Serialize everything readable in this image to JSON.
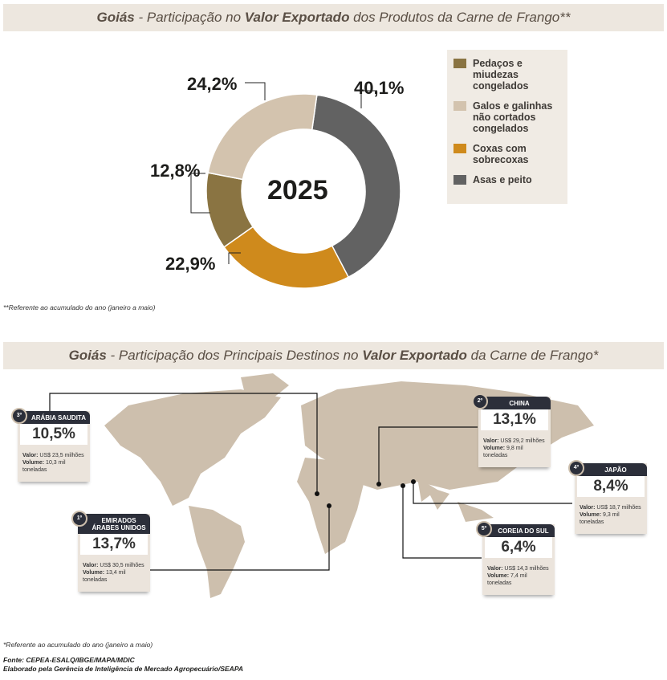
{
  "banner1": {
    "place": "Goiás",
    "text1": " - Participação no ",
    "bold": "Valor Exportado",
    "text2": " dos Produtos da Carne de Frango**"
  },
  "chart_data": {
    "type": "pie",
    "title": "Goiás - Participação no Valor Exportado dos Produtos da Carne de Frango**",
    "center_label": "2025",
    "categories": [
      "Asas e peito",
      "Coxas com sobrecoxas",
      "Pedaços e miudezas congelados",
      "Galos e galinhas não cortados congelados"
    ],
    "values": [
      40.1,
      22.9,
      12.8,
      24.2
    ],
    "labels": [
      "40,1%",
      "22,9%",
      "12,8%",
      "24,2%"
    ],
    "colors": [
      "#626262",
      "#cf8a1c",
      "#8a7442",
      "#d3c3ae"
    ],
    "legend": [
      {
        "label": "Pedaços e miudezas congelados",
        "color": "#8a7442"
      },
      {
        "label": "Galos e galinhas não cortados congelados",
        "color": "#d3c3ae"
      },
      {
        "label": "Coxas com sobrecoxas",
        "color": "#cf8a1c"
      },
      {
        "label": "Asas e peito",
        "color": "#626262"
      }
    ],
    "legend_placement": "right"
  },
  "note1": "**Referente ao acumulado do ano (janeiro a maio)",
  "banner2": {
    "place": "Goiás",
    "text1": " - Participação dos Principais Destinos no ",
    "bold": "Valor Exportado",
    "text2": " da Carne de Frango*"
  },
  "destinations": [
    {
      "rank": "3º",
      "name": "ARÁBIA SAUDITA",
      "pct": "10,5%",
      "valor_label": "Valor:",
      "valor": " US$ 23,5 milhões",
      "volume_label": "Volume:",
      "volume": " 10,3 mil toneladas"
    },
    {
      "rank": "1º",
      "name": "EMIRADOS ÁRABES UNIDOS",
      "pct": "13,7%",
      "valor_label": "Valor:",
      "valor": " US$ 30,5 milhões",
      "volume_label": "Volume:",
      "volume": " 13,4 mil toneladas"
    },
    {
      "rank": "2º",
      "name": "CHINA",
      "pct": "13,1%",
      "valor_label": "Valor:",
      "valor": " US$ 29,2 milhões",
      "volume_label": "Volume:",
      "volume": " 9,8 mil toneladas"
    },
    {
      "rank": "4º",
      "name": "JAPÃO",
      "pct": "8,4%",
      "valor_label": "Valor:",
      "valor": " US$ 18,7 milhões",
      "volume_label": "Volume:",
      "volume": " 9,3 mil toneladas"
    },
    {
      "rank": "5º",
      "name": "COREIA DO SUL",
      "pct": "6,4%",
      "valor_label": "Valor:",
      "valor": " US$ 14,3 milhões",
      "volume_label": "Volume:",
      "volume": " 7,4 mil toneladas"
    }
  ],
  "note2": "*Referente ao acumulado do ano (janeiro a maio)",
  "source": "Fonte: CEPEA-ESALQ/IBGE/MAPA/MDIC",
  "credit": "Elaborado pela Gerência de Inteligência de Mercado Agropecuário/SEAPA"
}
